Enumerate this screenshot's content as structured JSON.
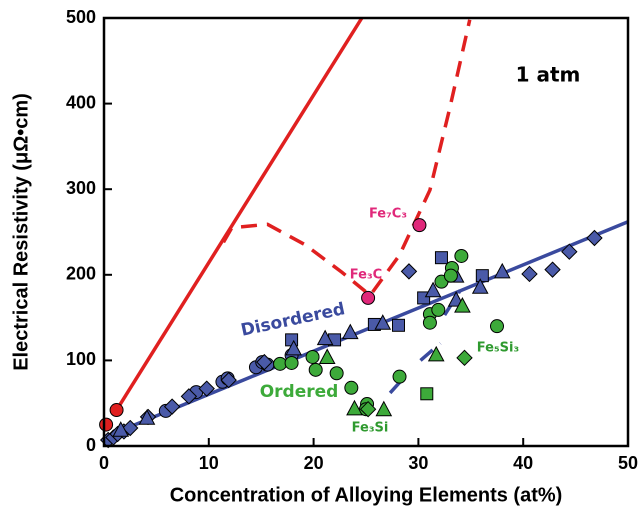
{
  "chart_data": {
    "type": "scatter",
    "xlabel": "Concentration of Alloying Elements (at%)",
    "ylabel": "Electrical Resistivity (μΩ•cm)",
    "xlim": [
      0,
      50
    ],
    "ylim": [
      0,
      500
    ],
    "xticks": [
      0,
      10,
      20,
      30,
      40,
      50
    ],
    "yticks": [
      0,
      100,
      200,
      300,
      400,
      500
    ],
    "annotations": [
      "1 atm",
      "Disordered",
      "Ordered",
      "Fe₃Si",
      "Fe₅Si₃",
      "Fe₃C",
      "Fe₇C₃"
    ],
    "series": [
      {
        "marker": "line",
        "dash": false,
        "color": "#e02020",
        "x": [
          1.2,
          24.6
        ],
        "values": [
          42,
          500
        ]
      },
      {
        "marker": "line",
        "dash": true,
        "color": "#e02020",
        "x": [
          11.4,
          12.2,
          15.6,
          19.2,
          22.7,
          25.4,
          28.2,
          31.1,
          33,
          34.9
        ],
        "values": [
          238,
          255,
          259,
          235,
          203,
          176,
          223,
          299,
          395,
          498
        ]
      },
      {
        "marker": "line",
        "dash": false,
        "color": "#3a4a9e",
        "x": [
          0,
          50
        ],
        "values": [
          10,
          262
        ]
      },
      {
        "marker": "line",
        "dash": true,
        "color": "#3a4a9e",
        "x": [
          27.3,
          28.7,
          null,
          30.2,
          32.1,
          null,
          32.5,
          34
        ],
        "values": [
          62,
          81,
          null,
          100,
          120,
          null,
          153,
          182
        ]
      },
      {
        "marker": "circle",
        "color": "#4a5aa8",
        "x": [
          5.9,
          8.8,
          11.3,
          11.8,
          14.5,
          15.1,
          15.6,
          17.9
        ],
        "values": [
          41,
          63,
          75,
          79,
          92,
          98,
          95,
          106
        ]
      },
      {
        "marker": "diamond",
        "color": "#4a5aa8",
        "x": [
          0.4,
          0.9,
          1.3,
          1.9,
          2.5,
          4.2,
          6.5,
          8.1,
          9.8,
          11.9,
          15.3,
          29.1,
          40.6,
          42.8,
          44.4,
          46.8
        ],
        "values": [
          7,
          10,
          14,
          17,
          21,
          34,
          46,
          58,
          67,
          77,
          98,
          204,
          201,
          206,
          227,
          243
        ]
      },
      {
        "marker": "square",
        "color": "#4a5aa8",
        "x": [
          17.9,
          22,
          25.8,
          28.1,
          30.5,
          32.2,
          36.1
        ],
        "values": [
          124,
          124,
          142,
          141,
          173,
          220,
          199
        ]
      },
      {
        "marker": "triangle",
        "color": "#4a5aa8",
        "x": [
          1.6,
          4.1,
          18.1,
          21.1,
          23.5,
          26.6,
          31.4,
          33.6,
          33.6,
          35.9,
          38
        ],
        "values": [
          19,
          33,
          114,
          126,
          133,
          144,
          182,
          199,
          171,
          186,
          204
        ]
      },
      {
        "marker": "circle",
        "color": "#3daa3a",
        "x": [
          16.8,
          17.9,
          19.9,
          20.2,
          22.2,
          23.6,
          25.1,
          25,
          28.2,
          31.1,
          31.1,
          31.9,
          32.2,
          33.2,
          33.1,
          34.1,
          37.5
        ],
        "values": [
          96,
          97,
          104,
          89,
          85,
          68,
          49,
          43,
          81,
          154,
          144,
          159,
          192,
          208,
          199,
          222,
          140
        ]
      },
      {
        "marker": "triangle",
        "color": "#3daa3a",
        "x": [
          21.3,
          23.9,
          26.7,
          31.7,
          34.2
        ],
        "values": [
          104,
          44,
          43,
          107,
          164
        ]
      },
      {
        "marker": "square",
        "color": "#3daa3a",
        "x": [
          30.8
        ],
        "values": [
          61
        ]
      },
      {
        "marker": "diamond",
        "color": "#3daa3a",
        "x": [
          25.2,
          34.4
        ],
        "values": [
          43,
          103
        ]
      },
      {
        "marker": "circle",
        "color": "#e02020",
        "x": [
          0.2,
          1.2
        ],
        "values": [
          25,
          42
        ]
      },
      {
        "marker": "circle",
        "color": "#e0287a",
        "x": [
          25.2,
          30.1
        ],
        "values": [
          173,
          258
        ]
      }
    ]
  }
}
